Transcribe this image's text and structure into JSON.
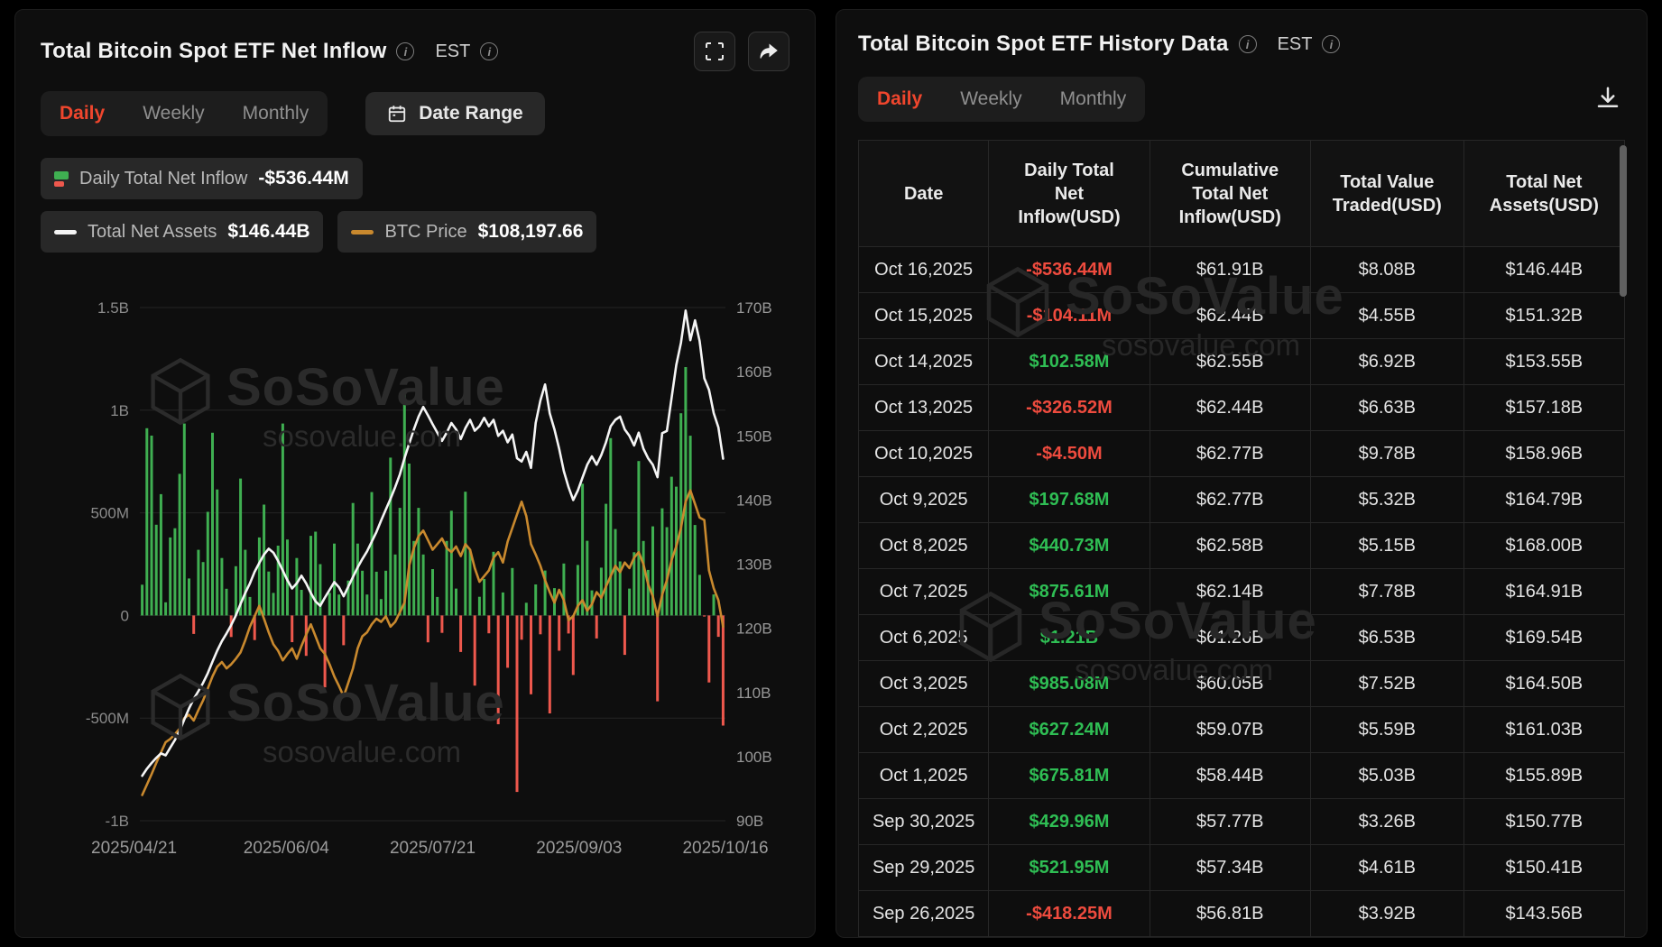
{
  "watermark": {
    "brand": "SoSoValue",
    "domain": "sosovalue.com"
  },
  "icons": {
    "info": "circled-i",
    "fullscreen": "corner-brackets",
    "share": "curved-arrow-right",
    "calendar": "calendar-grid",
    "download": "arrow-down-to-tray",
    "bar_legend": "green-red-mini-bars",
    "line_legend_white": "white-line-swatch",
    "line_legend_gold": "gold-line-swatch"
  },
  "left_panel": {
    "title": "Total Bitcoin Spot ETF Net Inflow",
    "est_label": "EST",
    "tabs": [
      "Daily",
      "Weekly",
      "Monthly"
    ],
    "active_tab": "Daily",
    "date_range_label": "Date Range",
    "legend": {
      "inflow_label": "Daily Total Net Inflow",
      "inflow_value": "-$536.44M",
      "net_assets_label": "Total Net Assets",
      "net_assets_value": "$146.44B",
      "btc_label": "BTC Price",
      "btc_value": "$108,197.66"
    },
    "accent_color": "#f0462d"
  },
  "chart_data": {
    "type": "bar+line combo",
    "title": "Total Bitcoin Spot ETF Net Inflow (Daily)",
    "grid": true,
    "x_ticks": [
      "2025/04/21",
      "2025/06/04",
      "2025/07/21",
      "2025/09/03",
      "2025/10/16"
    ],
    "left_axis": {
      "unit": "USD (M=million, B=billion)",
      "min": -1000,
      "max": 1500,
      "ticks": [
        {
          "label": "1.5B",
          "value": 1500
        },
        {
          "label": "1B",
          "value": 1000
        },
        {
          "label": "500M",
          "value": 500
        },
        {
          "label": "0",
          "value": 0
        },
        {
          "label": "-500M",
          "value": -500
        },
        {
          "label": "-1B",
          "value": -1000
        }
      ]
    },
    "right_axis": {
      "unit": "USD B",
      "min": 90,
      "max": 170,
      "ticks": [
        {
          "label": "170B",
          "value": 170
        },
        {
          "label": "160B",
          "value": 160
        },
        {
          "label": "150B",
          "value": 150
        },
        {
          "label": "140B",
          "value": 140
        },
        {
          "label": "130B",
          "value": 130
        },
        {
          "label": "120B",
          "value": 120
        },
        {
          "label": "110B",
          "value": 110
        },
        {
          "label": "100B",
          "value": 100
        },
        {
          "label": "90B",
          "value": 90
        }
      ]
    },
    "btc_axis": {
      "unit": "USD thousands (hidden axis)",
      "min": 84,
      "max": 148
    },
    "series_bar": {
      "name": "Daily Total Net Inflow",
      "unit": "USD M",
      "color_pos": "#3faf51",
      "color_neg": "#ee584d",
      "values": [
        150,
        912,
        876,
        442,
        591,
        64,
        380,
        425,
        690,
        935,
        180,
        -90,
        320,
        260,
        505,
        890,
        614,
        280,
        130,
        -105,
        240,
        667,
        320,
        90,
        -120,
        380,
        540,
        214,
        110,
        340,
        935,
        370,
        -130,
        280,
        125,
        -197,
        388,
        408,
        250,
        -350,
        110,
        350,
        102,
        -145,
        170,
        548,
        350,
        218,
        102,
        601,
        213,
        80,
        218,
        769,
        297,
        524,
        1085,
        740,
        363,
        524,
        297,
        -131,
        226,
        90,
        -85,
        363,
        510,
        131,
        -178,
        603,
        321,
        -342,
        91,
        178,
        -87,
        310,
        -530,
        112,
        -255,
        231,
        -860,
        -118,
        62,
        -384,
        151,
        -92,
        219,
        -477,
        133,
        -172,
        253,
        -88,
        -290,
        246,
        642,
        364,
        122,
        -112,
        233,
        544,
        864,
        421,
        263,
        -192,
        131,
        308,
        752,
        363,
        222,
        434,
        -418.25,
        521.95,
        429.96,
        675.81,
        627.24,
        985.08,
        1210,
        875.61,
        440.73,
        197.68,
        -4.5,
        -326.52,
        102.58,
        -104.11,
        -536.44
      ]
    },
    "series_assets": {
      "name": "Total Net Assets",
      "unit": "USD B",
      "color": "#f5f5f5",
      "axis": "right",
      "values": [
        97.0,
        98.1,
        99.0,
        99.8,
        100.5,
        100.2,
        101.4,
        102.6,
        104.0,
        105.8,
        107.5,
        109.0,
        110.2,
        111.5,
        113.0,
        114.8,
        116.5,
        118.0,
        119.2,
        120.5,
        122.0,
        123.8,
        125.5,
        127.0,
        128.8,
        130.2,
        131.5,
        132.4,
        131.8,
        130.5,
        129.0,
        127.5,
        126.2,
        127.0,
        128.2,
        127.0,
        125.5,
        124.2,
        123.5,
        124.8,
        126.0,
        127.2,
        126.4,
        125.0,
        126.5,
        128.0,
        129.5,
        130.8,
        132.0,
        133.5,
        135.0,
        136.8,
        138.5,
        140.2,
        142.0,
        144.0,
        146.5,
        148.8,
        151.0,
        153.0,
        154.5,
        153.2,
        151.8,
        150.5,
        149.2,
        150.5,
        152.0,
        151.0,
        149.5,
        151.2,
        152.5,
        150.8,
        151.5,
        152.8,
        151.5,
        152.5,
        150.0,
        150.8,
        149.0,
        150.2,
        146.5,
        146.0,
        147.5,
        145.0,
        152.0,
        155.5,
        158.0,
        153.5,
        151.0,
        148.0,
        144.5,
        142.0,
        140.0,
        141.5,
        143.5,
        145.5,
        146.8,
        145.5,
        147.0,
        149.0,
        151.5,
        152.5,
        153.0,
        151.0,
        150.0,
        148.5,
        150.5,
        148.0,
        146.5,
        145.5,
        143.56,
        150.41,
        150.77,
        155.89,
        161.03,
        164.5,
        169.54,
        164.91,
        168.0,
        164.79,
        158.96,
        157.18,
        153.55,
        151.32,
        146.44
      ]
    },
    "series_btc": {
      "name": "BTC Price",
      "unit": "USD thousands",
      "color": "#c9892e",
      "axis": "hidden",
      "values": [
        87.2,
        88.5,
        89.8,
        91.2,
        92.5,
        93.8,
        94.2,
        94.8,
        95.5,
        96.8,
        97.2,
        96.5,
        97.8,
        99.0,
        100.5,
        102.0,
        103.2,
        103.8,
        103.0,
        103.5,
        104.2,
        105.0,
        106.5,
        108.2,
        109.5,
        110.8,
        109.2,
        107.5,
        106.0,
        105.2,
        104.0,
        104.8,
        105.5,
        104.2,
        105.8,
        107.2,
        108.5,
        107.0,
        105.5,
        104.8,
        103.5,
        102.0,
        100.8,
        99.5,
        101.2,
        103.0,
        105.5,
        107.0,
        107.5,
        108.5,
        109.2,
        108.8,
        109.5,
        108.2,
        108.8,
        110.0,
        111.2,
        115.8,
        118.0,
        119.5,
        120.2,
        119.0,
        117.8,
        118.5,
        119.2,
        118.0,
        117.5,
        118.2,
        117.0,
        118.5,
        117.8,
        115.5,
        113.8,
        114.5,
        115.2,
        116.8,
        117.5,
        116.2,
        118.8,
        120.5,
        122.2,
        123.8,
        122.0,
        118.5,
        117.2,
        115.8,
        114.0,
        112.5,
        111.2,
        112.8,
        111.5,
        109.0,
        109.5,
        110.8,
        111.5,
        110.2,
        111.0,
        112.5,
        111.8,
        113.2,
        114.5,
        115.8,
        115.0,
        116.2,
        115.5,
        116.8,
        117.5,
        116.0,
        113.5,
        112.0,
        109.5,
        112.2,
        114.0,
        116.5,
        118.2,
        120.5,
        123.8,
        125.2,
        123.5,
        121.8,
        121.5,
        115.2,
        113.0,
        111.5,
        108.2
      ]
    }
  },
  "right_panel": {
    "title": "Total Bitcoin Spot ETF History Data",
    "est_label": "EST",
    "tabs": [
      "Daily",
      "Weekly",
      "Monthly"
    ],
    "active_tab": "Daily",
    "table": {
      "columns": [
        "Date",
        "Daily Total Net Inflow(USD)",
        "Cumulative Total Net Inflow(USD)",
        "Total Value Traded(USD)",
        "Total Net Assets(USD)"
      ],
      "rows": [
        {
          "date": "Oct 16,2025",
          "inflow": "-$536.44M",
          "cumulative": "$61.91B",
          "traded": "$8.08B",
          "assets": "$146.44B"
        },
        {
          "date": "Oct 15,2025",
          "inflow": "-$104.11M",
          "cumulative": "$62.44B",
          "traded": "$4.55B",
          "assets": "$151.32B"
        },
        {
          "date": "Oct 14,2025",
          "inflow": "$102.58M",
          "cumulative": "$62.55B",
          "traded": "$6.92B",
          "assets": "$153.55B"
        },
        {
          "date": "Oct 13,2025",
          "inflow": "-$326.52M",
          "cumulative": "$62.44B",
          "traded": "$6.63B",
          "assets": "$157.18B"
        },
        {
          "date": "Oct 10,2025",
          "inflow": "-$4.50M",
          "cumulative": "$62.77B",
          "traded": "$9.78B",
          "assets": "$158.96B"
        },
        {
          "date": "Oct 9,2025",
          "inflow": "$197.68M",
          "cumulative": "$62.77B",
          "traded": "$5.32B",
          "assets": "$164.79B"
        },
        {
          "date": "Oct 8,2025",
          "inflow": "$440.73M",
          "cumulative": "$62.58B",
          "traded": "$5.15B",
          "assets": "$168.00B"
        },
        {
          "date": "Oct 7,2025",
          "inflow": "$875.61M",
          "cumulative": "$62.14B",
          "traded": "$7.78B",
          "assets": "$164.91B"
        },
        {
          "date": "Oct 6,2025",
          "inflow": "$1.21B",
          "cumulative": "$61.26B",
          "traded": "$6.53B",
          "assets": "$169.54B"
        },
        {
          "date": "Oct 3,2025",
          "inflow": "$985.08M",
          "cumulative": "$60.05B",
          "traded": "$7.52B",
          "assets": "$164.50B"
        },
        {
          "date": "Oct 2,2025",
          "inflow": "$627.24M",
          "cumulative": "$59.07B",
          "traded": "$5.59B",
          "assets": "$161.03B"
        },
        {
          "date": "Oct 1,2025",
          "inflow": "$675.81M",
          "cumulative": "$58.44B",
          "traded": "$5.03B",
          "assets": "$155.89B"
        },
        {
          "date": "Sep 30,2025",
          "inflow": "$429.96M",
          "cumulative": "$57.77B",
          "traded": "$3.26B",
          "assets": "$150.77B"
        },
        {
          "date": "Sep 29,2025",
          "inflow": "$521.95M",
          "cumulative": "$57.34B",
          "traded": "$4.61B",
          "assets": "$150.41B"
        },
        {
          "date": "Sep 26,2025",
          "inflow": "-$418.25M",
          "cumulative": "$56.81B",
          "traded": "$3.92B",
          "assets": "$143.56B"
        }
      ],
      "positive_color": "#2fbe54",
      "negative_color": "#ee4b3e"
    }
  }
}
